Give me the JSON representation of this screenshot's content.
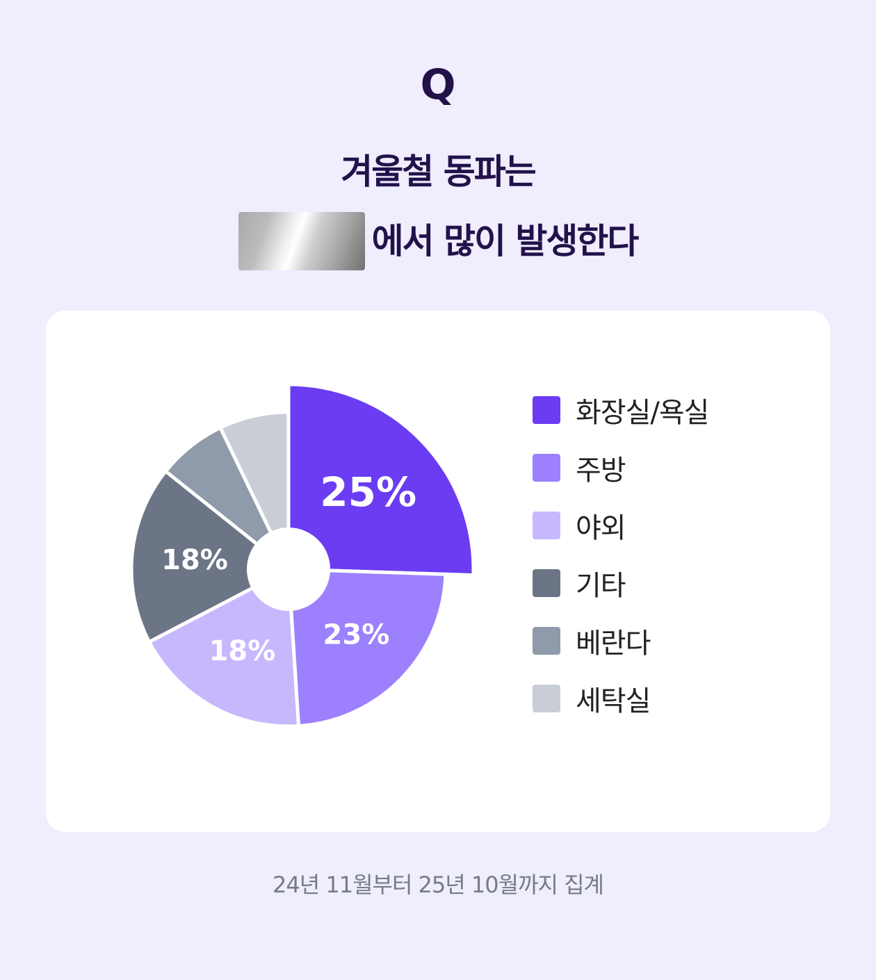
{
  "header": {
    "q_mark": "Q",
    "headline_line1": "겨울철 동파는",
    "headline_line2": "에서 많이 발생한다"
  },
  "chart_data": {
    "type": "pie",
    "categories": [
      "화장실/욕실",
      "주방",
      "야외",
      "기타",
      "베란다",
      "세탁실"
    ],
    "values": [
      25,
      23,
      18,
      18,
      7,
      7
    ],
    "labels": [
      "25%",
      "23%",
      "18%",
      "18%",
      "",
      ""
    ],
    "colors": [
      "#6b3cf2",
      "#9c80fd",
      "#c7b8fe",
      "#6b7585",
      "#8f9aaa",
      "#c9cdd6"
    ],
    "legend_position": "right",
    "highlighted_category": "화장실/욕실"
  },
  "legend": {
    "items": [
      {
        "label": "화장실/욕실",
        "color": "#6b3cf2"
      },
      {
        "label": "주방",
        "color": "#9c80fd"
      },
      {
        "label": "야외",
        "color": "#c7b8fe"
      },
      {
        "label": "기타",
        "color": "#6b7585"
      },
      {
        "label": "베란다",
        "color": "#8f9aaa"
      },
      {
        "label": "세탁실",
        "color": "#c9cdd6"
      }
    ]
  },
  "footnote": "24년 11월부터 25년 10월까지 집계"
}
